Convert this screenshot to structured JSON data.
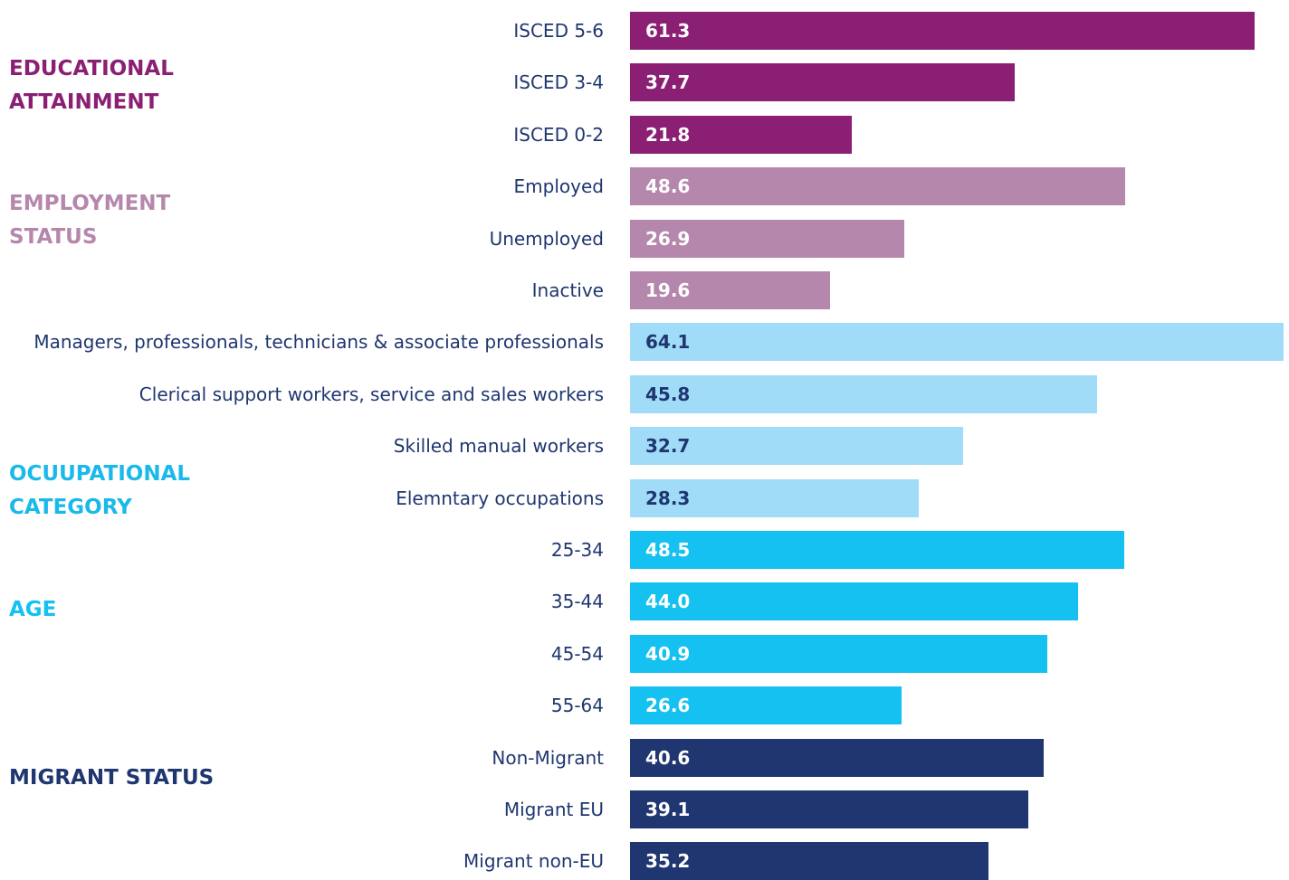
{
  "chart_data": {
    "type": "bar",
    "groups": [
      {
        "name": "EDUCATIONAL ATTAINMENT",
        "color": "#8b1f74",
        "name_color": "#8b1f74",
        "value_label_color": "#ffffff",
        "categories": [
          "ISCED 5-6",
          "ISCED 3-4",
          "ISCED 0-2"
        ],
        "values": [
          61.3,
          37.7,
          21.8
        ],
        "value_labels": [
          "61.3",
          "37.7",
          "21.8"
        ]
      },
      {
        "name": "EMPLOYMENT STATUS",
        "color": "#b687ac",
        "name_color": "#b687ac",
        "value_label_color": "#ffffff",
        "categories": [
          "Employed",
          "Unemployed",
          "Inactive"
        ],
        "values": [
          48.6,
          26.9,
          19.6
        ],
        "value_labels": [
          "48.6",
          "26.9",
          "19.6"
        ]
      },
      {
        "name": "OCUUPATIONAL CATEGORY",
        "color": "#a0dcf7",
        "name_color": "#1ab9ea",
        "value_label_color": "#1f3670",
        "categories": [
          "Managers, professionals, technicians & associate professionals",
          "Clerical support workers, service and sales workers",
          "Skilled manual workers",
          "Elemntary occupations"
        ],
        "values": [
          64.1,
          45.8,
          32.7,
          28.3
        ],
        "value_labels": [
          "64.1",
          "45.8",
          "32.7",
          "28.3"
        ]
      },
      {
        "name": "AGE",
        "color": "#15c1f0",
        "name_color": "#15c1f0",
        "value_label_color": "#ffffff",
        "categories": [
          "25-34",
          "35-44",
          "45-54",
          "55-64"
        ],
        "values": [
          48.5,
          44.0,
          40.9,
          26.6
        ],
        "value_labels": [
          "48.5",
          "44.0",
          "40.9",
          "26.6"
        ]
      },
      {
        "name": "MIGRANT STATUS",
        "color": "#1f3670",
        "name_color": "#1f3670",
        "value_label_color": "#ffffff",
        "categories": [
          "Non-Migrant",
          "Migrant EU",
          "Migrant non-EU"
        ],
        "values": [
          40.6,
          39.1,
          35.2
        ],
        "value_labels": [
          "40.6",
          "39.1",
          "35.2"
        ]
      }
    ]
  }
}
